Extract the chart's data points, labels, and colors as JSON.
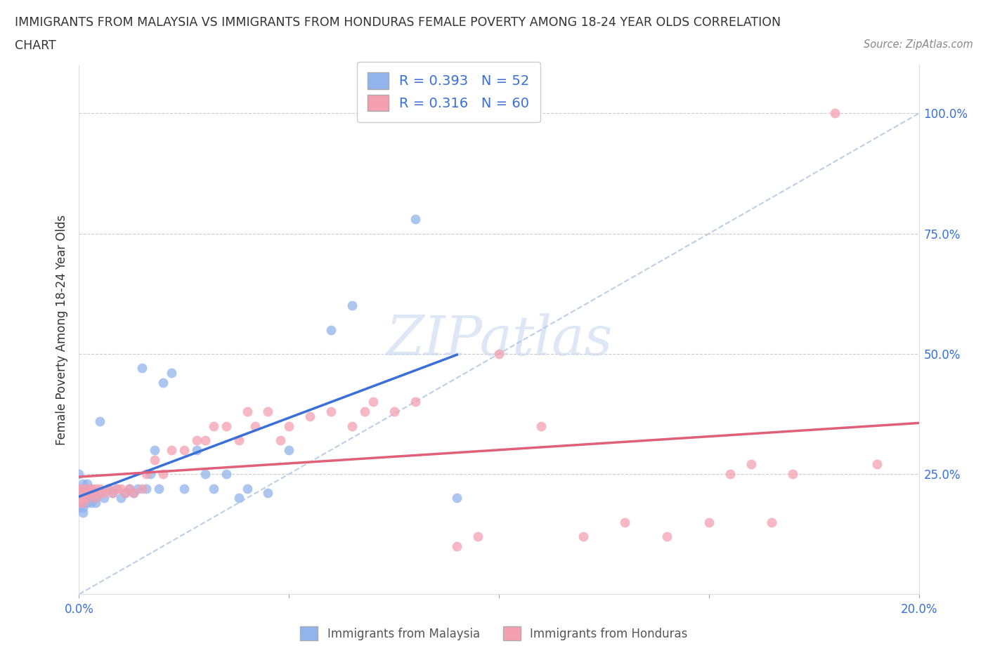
{
  "title_line1": "IMMIGRANTS FROM MALAYSIA VS IMMIGRANTS FROM HONDURAS FEMALE POVERTY AMONG 18-24 YEAR OLDS CORRELATION",
  "title_line2": "CHART",
  "source": "Source: ZipAtlas.com",
  "ylabel": "Female Poverty Among 18-24 Year Olds",
  "xlim": [
    0.0,
    0.2
  ],
  "ylim": [
    0.0,
    1.1
  ],
  "yticks": [
    0.25,
    0.5,
    0.75,
    1.0
  ],
  "ytick_labels": [
    "25.0%",
    "50.0%",
    "75.0%",
    "100.0%"
  ],
  "xticks": [
    0.0,
    0.05,
    0.1,
    0.15,
    0.2
  ],
  "xtick_labels": [
    "0.0%",
    "",
    "",
    "",
    "20.0%"
  ],
  "malaysia_color": "#92b4ec",
  "honduras_color": "#f4a0b0",
  "regression_malaysia_color": "#3a6fd8",
  "regression_honduras_color": "#e0607a",
  "diagonal_color": "#aac4e0",
  "R_malaysia": 0.393,
  "N_malaysia": 52,
  "R_honduras": 0.316,
  "N_honduras": 60,
  "background_color": "#ffffff",
  "watermark_text": "ZIPatlas",
  "watermark_color": "#c8d8f0",
  "malaysia_x": [
    0.0,
    0.0,
    0.0,
    0.0,
    0.0,
    0.0,
    0.001,
    0.001,
    0.001,
    0.001,
    0.001,
    0.001,
    0.002,
    0.002,
    0.002,
    0.002,
    0.003,
    0.003,
    0.003,
    0.004,
    0.004,
    0.005,
    0.005,
    0.006,
    0.007,
    0.008,
    0.009,
    0.01,
    0.011,
    0.012,
    0.013,
    0.014,
    0.015,
    0.016,
    0.017,
    0.018,
    0.019,
    0.02,
    0.022,
    0.025,
    0.028,
    0.03,
    0.032,
    0.035,
    0.038,
    0.04,
    0.045,
    0.05,
    0.06,
    0.065,
    0.08,
    0.09
  ],
  "malaysia_y": [
    0.18,
    0.2,
    0.22,
    0.25,
    0.22,
    0.19,
    0.17,
    0.2,
    0.22,
    0.19,
    0.23,
    0.18,
    0.19,
    0.21,
    0.23,
    0.2,
    0.19,
    0.21,
    0.22,
    0.19,
    0.2,
    0.21,
    0.36,
    0.2,
    0.22,
    0.21,
    0.22,
    0.2,
    0.21,
    0.22,
    0.21,
    0.22,
    0.47,
    0.22,
    0.25,
    0.3,
    0.22,
    0.44,
    0.46,
    0.22,
    0.3,
    0.25,
    0.22,
    0.25,
    0.2,
    0.22,
    0.21,
    0.3,
    0.55,
    0.6,
    0.78,
    0.2
  ],
  "honduras_x": [
    0.0,
    0.0,
    0.0,
    0.001,
    0.001,
    0.001,
    0.002,
    0.002,
    0.002,
    0.003,
    0.003,
    0.004,
    0.004,
    0.005,
    0.005,
    0.006,
    0.007,
    0.008,
    0.009,
    0.01,
    0.011,
    0.012,
    0.013,
    0.015,
    0.016,
    0.018,
    0.02,
    0.022,
    0.025,
    0.028,
    0.03,
    0.032,
    0.035,
    0.038,
    0.04,
    0.042,
    0.045,
    0.048,
    0.05,
    0.055,
    0.06,
    0.065,
    0.068,
    0.07,
    0.075,
    0.08,
    0.09,
    0.095,
    0.1,
    0.11,
    0.12,
    0.13,
    0.14,
    0.15,
    0.155,
    0.16,
    0.165,
    0.17,
    0.18,
    0.19
  ],
  "honduras_y": [
    0.2,
    0.22,
    0.19,
    0.2,
    0.22,
    0.19,
    0.21,
    0.22,
    0.2,
    0.21,
    0.22,
    0.2,
    0.22,
    0.21,
    0.22,
    0.21,
    0.22,
    0.21,
    0.22,
    0.22,
    0.21,
    0.22,
    0.21,
    0.22,
    0.25,
    0.28,
    0.25,
    0.3,
    0.3,
    0.32,
    0.32,
    0.35,
    0.35,
    0.32,
    0.38,
    0.35,
    0.38,
    0.32,
    0.35,
    0.37,
    0.38,
    0.35,
    0.38,
    0.4,
    0.38,
    0.4,
    0.1,
    0.12,
    0.5,
    0.35,
    0.12,
    0.15,
    0.12,
    0.15,
    0.25,
    0.27,
    0.15,
    0.25,
    1.0,
    0.27
  ]
}
